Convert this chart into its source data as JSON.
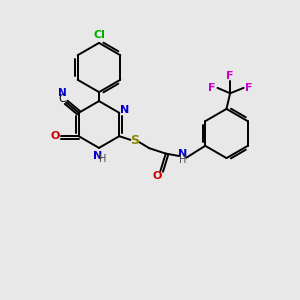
{
  "bg_color": "#e8e8e8",
  "bond_color": "#000000",
  "lw": 1.4,
  "atom_colors": {
    "N": "#0000cc",
    "O": "#cc0000",
    "S": "#888800",
    "Cl": "#00aa00",
    "F": "#cc00cc",
    "H": "#444444",
    "C": "#000000"
  },
  "xlim": [
    0,
    10
  ],
  "ylim": [
    0,
    10
  ]
}
